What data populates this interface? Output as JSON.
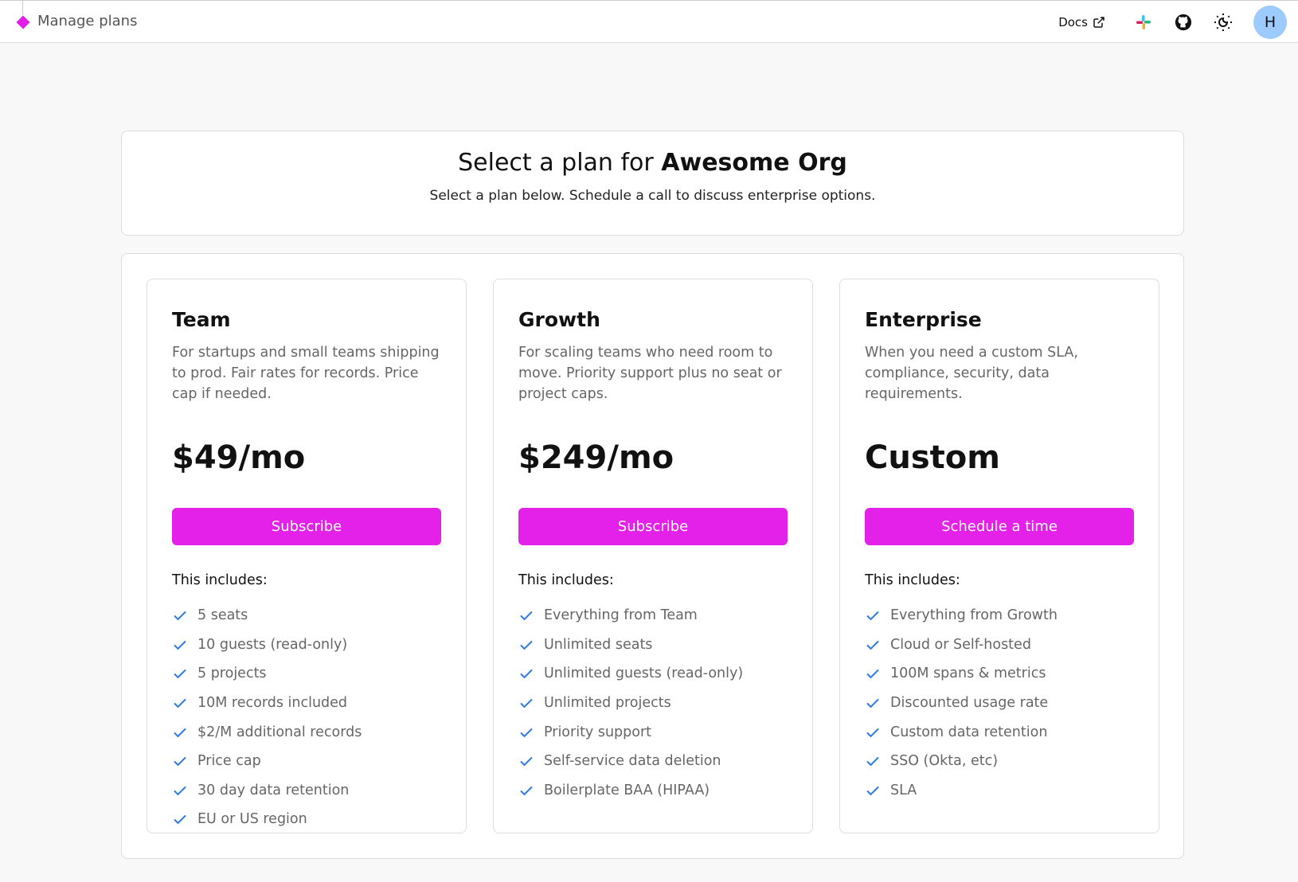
{
  "header": {
    "title": "Manage plans",
    "docs_label": "Docs",
    "avatar_initial": "H",
    "accent": "#e11fe8"
  },
  "hero": {
    "title_prefix": "Select a plan for",
    "org_name": "Awesome Org",
    "subtitle": "Select a plan below. Schedule a call to discuss enterprise options."
  },
  "plans": [
    {
      "name": "Team",
      "description": "For startups and small teams shipping to prod. Fair rates for records. Price cap if needed.",
      "price": "$49/mo",
      "button": "Subscribe",
      "includes_label": "This includes:",
      "features": [
        "5 seats",
        "10 guests (read-only)",
        "5 projects",
        "10M records included",
        "$2/M additional records",
        "Price cap",
        "30 day data retention",
        "EU or US region"
      ]
    },
    {
      "name": "Growth",
      "description": "For scaling teams who need room to move. Priority support plus no seat or project caps.",
      "price": "$249/mo",
      "button": "Subscribe",
      "includes_label": "This includes:",
      "features": [
        "Everything from Team",
        "Unlimited seats",
        "Unlimited guests (read-only)",
        "Unlimited projects",
        "Priority support",
        "Self-service data deletion",
        "Boilerplate BAA (HIPAA)"
      ]
    },
    {
      "name": "Enterprise",
      "description": "When you need a custom SLA, compliance, security, data requirements.",
      "price": "Custom",
      "button": "Schedule a time",
      "includes_label": "This includes:",
      "features": [
        "Everything from Growth",
        "Cloud or Self-hosted",
        "100M spans & metrics",
        "Discounted usage rate",
        "Custom data retention",
        "SSO (Okta, etc)",
        "SLA"
      ]
    }
  ]
}
